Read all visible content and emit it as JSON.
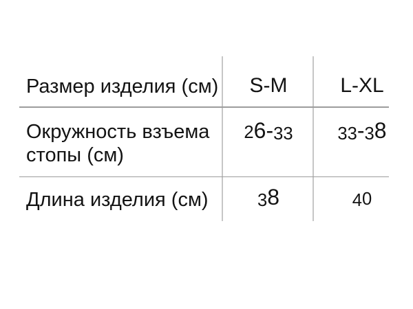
{
  "style": {
    "background": "#ffffff",
    "text_color": "#131313",
    "horizontal_line_color": "#9c9c9c",
    "vertical_line_color": "#c6c6c6"
  },
  "chart_data": {
    "type": "table",
    "title": "",
    "columns": [
      "Размер изделия (см)",
      "S-M",
      "L-XL"
    ],
    "rows": [
      {
        "label": "Окружность взъема стопы (см)",
        "values": [
          "26-33",
          "33-38"
        ]
      },
      {
        "label": "Длина изделия (см)",
        "values": [
          "38",
          "40"
        ]
      }
    ],
    "grid": "partial: two vertical column dividers, two horizontal row dividers",
    "legend": "none"
  }
}
